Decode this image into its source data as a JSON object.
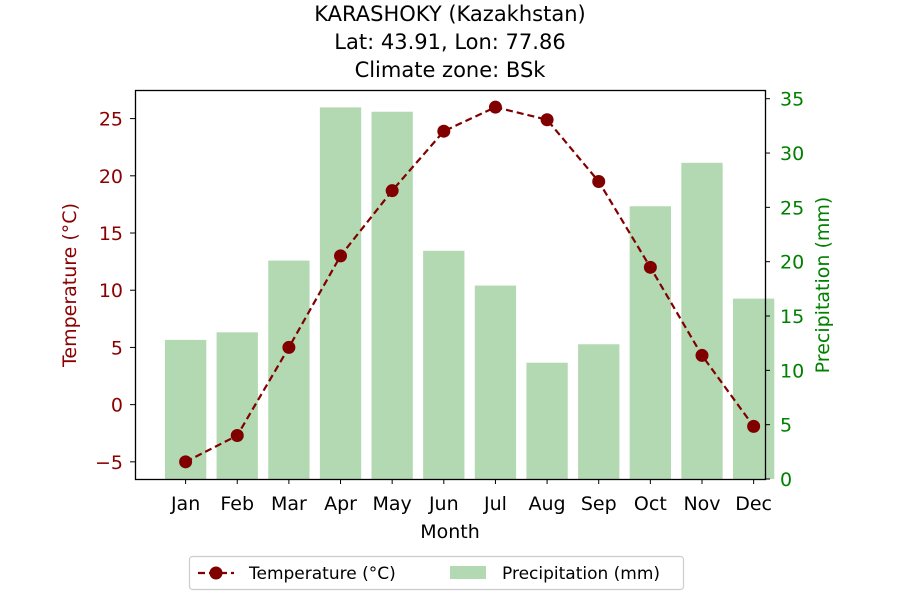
{
  "chart_data": {
    "type": "bar+line",
    "title": "KARASHOKY (Kazakhstan)",
    "subtitle_lines": [
      "Lat: 43.91, Lon: 77.86",
      "Climate zone: BSk"
    ],
    "xlabel": "Month",
    "ylabel_left": "Temperature (°C)",
    "ylabel_right": "Precipitation (mm)",
    "categories": [
      "Jan",
      "Feb",
      "Mar",
      "Apr",
      "May",
      "Jun",
      "Jul",
      "Aug",
      "Sep",
      "Oct",
      "Nov",
      "Dec"
    ],
    "temperature": {
      "name": "Temperature (°C)",
      "values": [
        -5.0,
        -2.7,
        5.0,
        13.0,
        18.7,
        23.9,
        26.0,
        24.9,
        19.5,
        12.0,
        4.3,
        -1.9
      ],
      "color": "#800000"
    },
    "precipitation": {
      "name": "Precipitation (mm)",
      "values": [
        12.8,
        13.5,
        20.1,
        34.2,
        33.8,
        21.0,
        17.8,
        10.7,
        12.4,
        25.1,
        29.1,
        16.6
      ],
      "color": "#b2d9b2"
    },
    "ylim_left": [
      -6.5,
      27.5
    ],
    "yticks_left": [
      -5,
      0,
      5,
      10,
      15,
      20,
      25
    ],
    "ylim_right": [
      0,
      35.8
    ],
    "yticks_right": [
      0,
      5,
      10,
      15,
      20,
      25,
      30,
      35
    ],
    "left_axis_color": "#8b0000",
    "right_axis_color": "#008000",
    "grid": false,
    "legend_position": "bottom-center"
  }
}
